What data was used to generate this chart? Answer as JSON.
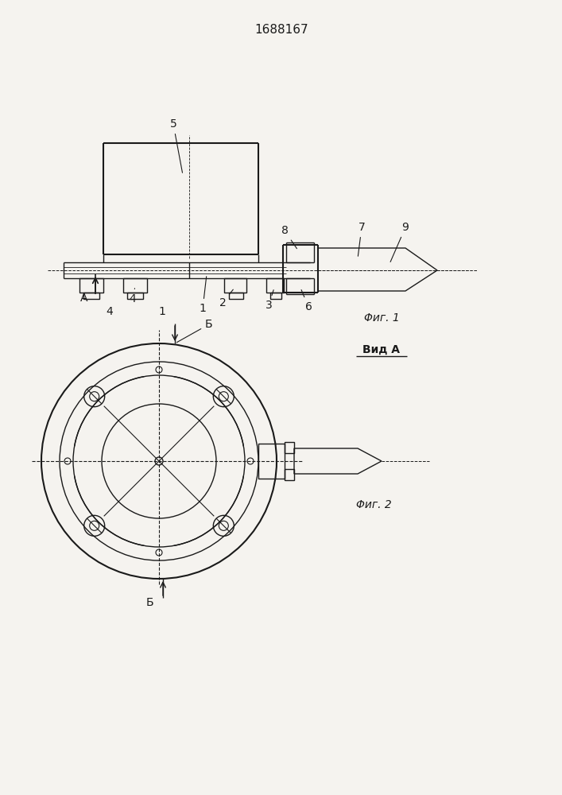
{
  "title": "1688167",
  "bg_color": "#f5f3ef",
  "line_color": "#1a1a1a",
  "fig1_label": "Φиг. 1",
  "fig2_label": "Φиг. 2",
  "vida_label": "Вид A"
}
